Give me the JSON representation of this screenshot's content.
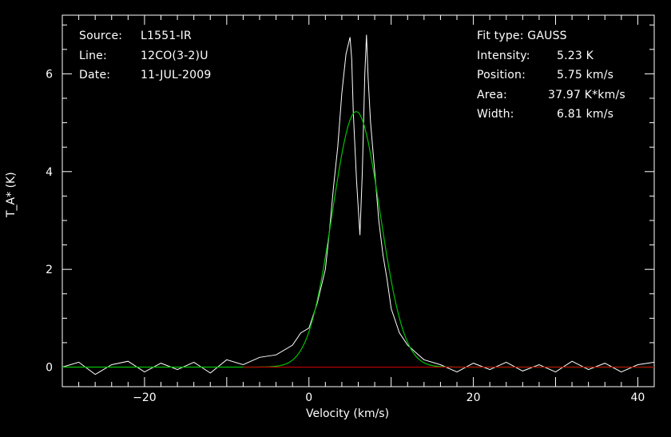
{
  "header_left": {
    "source_label": "Source:",
    "source_value": "L1551-IR",
    "line_label": "Line:",
    "line_value": "12CO(3-2)U",
    "date_label": "Date:",
    "date_value": "11-JUL-2009"
  },
  "fit_info": {
    "fit_type": "Fit type: GAUSS",
    "intensity_label": "Intensity:",
    "intensity_value": "5.23 K",
    "position_label": "Position:",
    "position_value": "5.75 km/s",
    "area_label": "Area:",
    "area_value": "37.97 K*km/s",
    "width_label": "Width:",
    "width_value": "6.81 km/s"
  },
  "colors": {
    "background": "#000000",
    "axes": "#ffffff",
    "spectrum": "#ffffff",
    "fit": "#00c000",
    "baseline": "#d00000"
  },
  "chart_data": {
    "type": "line",
    "title": "",
    "xlabel": "Velocity (km/s)",
    "ylabel": "T_A* (K)",
    "xlim": [
      -30,
      42
    ],
    "ylim": [
      -0.4,
      7.2
    ],
    "xticks": [
      -20,
      0,
      20,
      40
    ],
    "yticks": [
      0,
      2,
      4,
      6
    ],
    "grid": false,
    "series": [
      {
        "role": "spectrum",
        "x": [
          -30,
          -28,
          -26,
          -24,
          -22,
          -20,
          -18,
          -16,
          -14,
          -12,
          -10,
          -8,
          -6,
          -4,
          -2,
          -1,
          0,
          1,
          2,
          2.5,
          3,
          3.5,
          4,
          4.5,
          5,
          5.2,
          5.4,
          5.8,
          6.2,
          6.5,
          6.8,
          7.0,
          7.2,
          7.5,
          8,
          8.5,
          9,
          9.5,
          10,
          11,
          12,
          13,
          14,
          16,
          18,
          20,
          22,
          24,
          26,
          28,
          30,
          32,
          34,
          36,
          38,
          40,
          42
        ],
        "y": [
          0.0,
          0.1,
          -0.15,
          0.05,
          0.12,
          -0.1,
          0.08,
          -0.05,
          0.1,
          -0.12,
          0.15,
          0.05,
          0.2,
          0.25,
          0.45,
          0.7,
          0.8,
          1.3,
          2.0,
          2.8,
          3.7,
          4.5,
          5.6,
          6.4,
          6.75,
          6.3,
          5.2,
          3.8,
          2.7,
          4.0,
          6.0,
          6.8,
          5.9,
          5.0,
          4.0,
          3.0,
          2.3,
          1.8,
          1.2,
          0.7,
          0.45,
          0.3,
          0.15,
          0.05,
          -0.1,
          0.08,
          -0.05,
          0.1,
          -0.08,
          0.05,
          -0.1,
          0.12,
          -0.05,
          0.08,
          -0.1,
          0.05,
          0.1
        ]
      },
      {
        "role": "gaussian_fit",
        "amplitude": 5.23,
        "center": 5.75,
        "fwhm": 6.81
      },
      {
        "role": "baseline",
        "x": [
          -8,
          42
        ],
        "y": [
          0,
          0
        ]
      }
    ]
  }
}
